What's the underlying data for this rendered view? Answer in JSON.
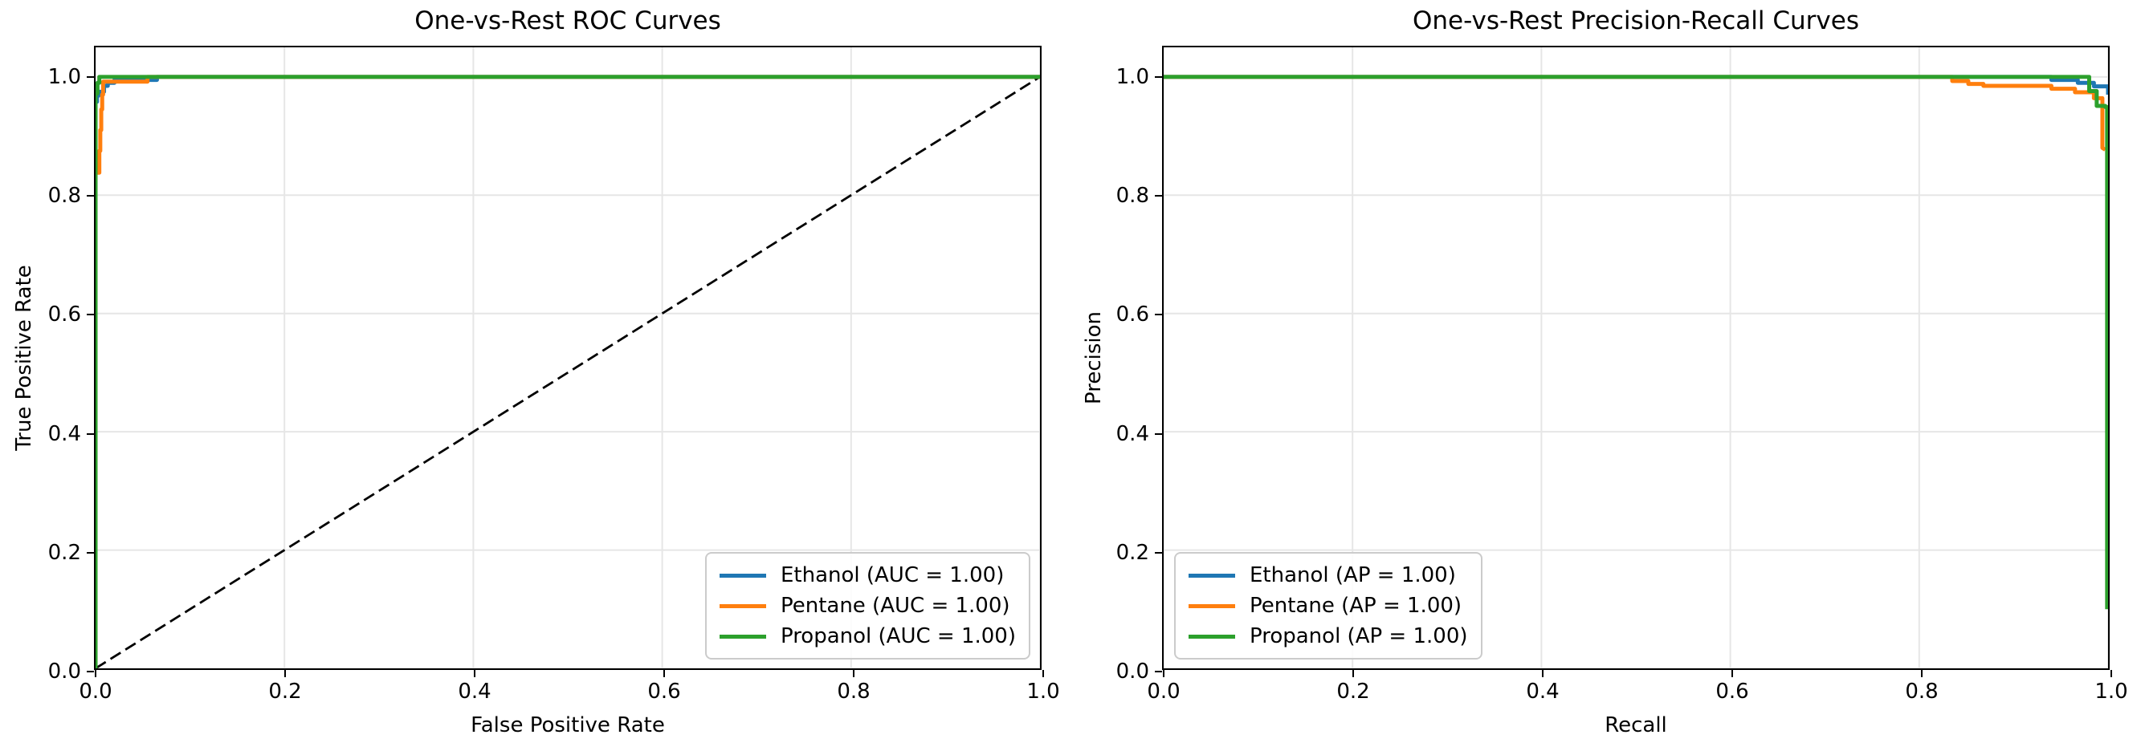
{
  "figure": {
    "background": "#ffffff",
    "grid_color": "#e6e6e6",
    "spine_color": "#000000"
  },
  "chart_data": [
    {
      "id": "roc",
      "type": "line",
      "title": "One-vs-Rest ROC Curves",
      "xlabel": "False Positive Rate",
      "ylabel": "True Positive Rate",
      "xlim": [
        0,
        1
      ],
      "ylim": [
        0,
        1.05
      ],
      "grid": true,
      "legend_position": "lower-right",
      "xtick_values": [
        0,
        0.2,
        0.4,
        0.6,
        0.8,
        1.0
      ],
      "xtick_labels": [
        "0.0",
        "0.2",
        "0.4",
        "0.6",
        "0.8",
        "1.0"
      ],
      "ytick_values": [
        0,
        0.2,
        0.4,
        0.6,
        0.8,
        1.0
      ],
      "ytick_labels": [
        "0.0",
        "0.2",
        "0.4",
        "0.6",
        "0.8",
        "1.0"
      ],
      "reference_line": {
        "style": "dashed",
        "color": "#000000",
        "from": [
          0,
          0
        ],
        "to": [
          1,
          1
        ]
      },
      "series": [
        {
          "name": "Ethanol",
          "label": "Ethanol (AUC = 1.00)",
          "auc": "1.00",
          "color": "#1f77b4",
          "x": [
            0,
            0,
            0.0015,
            0.0015,
            0.003,
            0.003,
            0.009,
            0.009,
            0.013,
            0.013,
            0.02,
            0.02,
            0.065,
            0.065,
            1
          ],
          "y": [
            0,
            0.958,
            0.958,
            0.968,
            0.968,
            0.975,
            0.975,
            0.985,
            0.985,
            0.99,
            0.99,
            0.995,
            0.995,
            1,
            1
          ]
        },
        {
          "name": "Pentane",
          "label": "Pentane (AUC = 1.00)",
          "auc": "1.00",
          "color": "#ff7f0e",
          "x": [
            0,
            0,
            0.004,
            0.004,
            0.005,
            0.005,
            0.006,
            0.006,
            0.007,
            0.007,
            0.008,
            0.008,
            0.055,
            0.055,
            1
          ],
          "y": [
            0,
            0.838,
            0.838,
            0.875,
            0.875,
            0.91,
            0.91,
            0.945,
            0.945,
            0.97,
            0.97,
            0.992,
            0.992,
            1,
            1
          ]
        },
        {
          "name": "Propanol",
          "label": "Propanol (AUC = 1.00)",
          "auc": "1.00",
          "color": "#2ca02c",
          "x": [
            0,
            0,
            0.002,
            0.002,
            0.004,
            0.004,
            1
          ],
          "y": [
            0,
            0.972,
            0.972,
            0.99,
            0.99,
            1,
            1
          ]
        }
      ]
    },
    {
      "id": "pr",
      "type": "line",
      "title": "One-vs-Rest Precision-Recall Curves",
      "xlabel": "Recall",
      "ylabel": "Precision",
      "xlim": [
        0,
        1
      ],
      "ylim": [
        0,
        1.05
      ],
      "grid": true,
      "legend_position": "lower-left",
      "xtick_values": [
        0,
        0.2,
        0.4,
        0.6,
        0.8,
        1.0
      ],
      "xtick_labels": [
        "0.0",
        "0.2",
        "0.4",
        "0.6",
        "0.8",
        "1.0"
      ],
      "ytick_values": [
        0,
        0.2,
        0.4,
        0.6,
        0.8,
        1.0
      ],
      "ytick_labels": [
        "0.0",
        "0.2",
        "0.4",
        "0.6",
        "0.8",
        "1.0"
      ],
      "reference_line": null,
      "series": [
        {
          "name": "Ethanol",
          "label": "Ethanol (AP = 1.00)",
          "ap": "1.00",
          "color": "#1f77b4",
          "x": [
            0,
            0.94,
            0.94,
            0.968,
            0.968,
            0.985,
            0.985,
            1,
            1
          ],
          "y": [
            1,
            1,
            0.995,
            0.995,
            0.99,
            0.99,
            0.984,
            0.984,
            0.97
          ]
        },
        {
          "name": "Pentane",
          "label": "Pentane (AP = 1.00)",
          "ap": "1.00",
          "color": "#ff7f0e",
          "x": [
            0,
            0.835,
            0.835,
            0.852,
            0.852,
            0.868,
            0.868,
            0.94,
            0.94,
            0.965,
            0.965,
            0.985,
            0.985,
            0.994,
            0.994,
            0.997
          ],
          "y": [
            1,
            1,
            0.993,
            0.993,
            0.988,
            0.988,
            0.985,
            0.985,
            0.98,
            0.98,
            0.974,
            0.974,
            0.964,
            0.964,
            0.88,
            0.877
          ]
        },
        {
          "name": "Propanol",
          "label": "Propanol (AP = 1.00)",
          "ap": "1.00",
          "color": "#2ca02c",
          "x": [
            0,
            0.98,
            0.98,
            0.988,
            0.988,
            0.997,
            0.997,
            0.999,
            0.999
          ],
          "y": [
            1,
            1,
            0.976,
            0.976,
            0.951,
            0.951,
            0.949,
            0.949,
            0.1
          ]
        }
      ]
    }
  ]
}
